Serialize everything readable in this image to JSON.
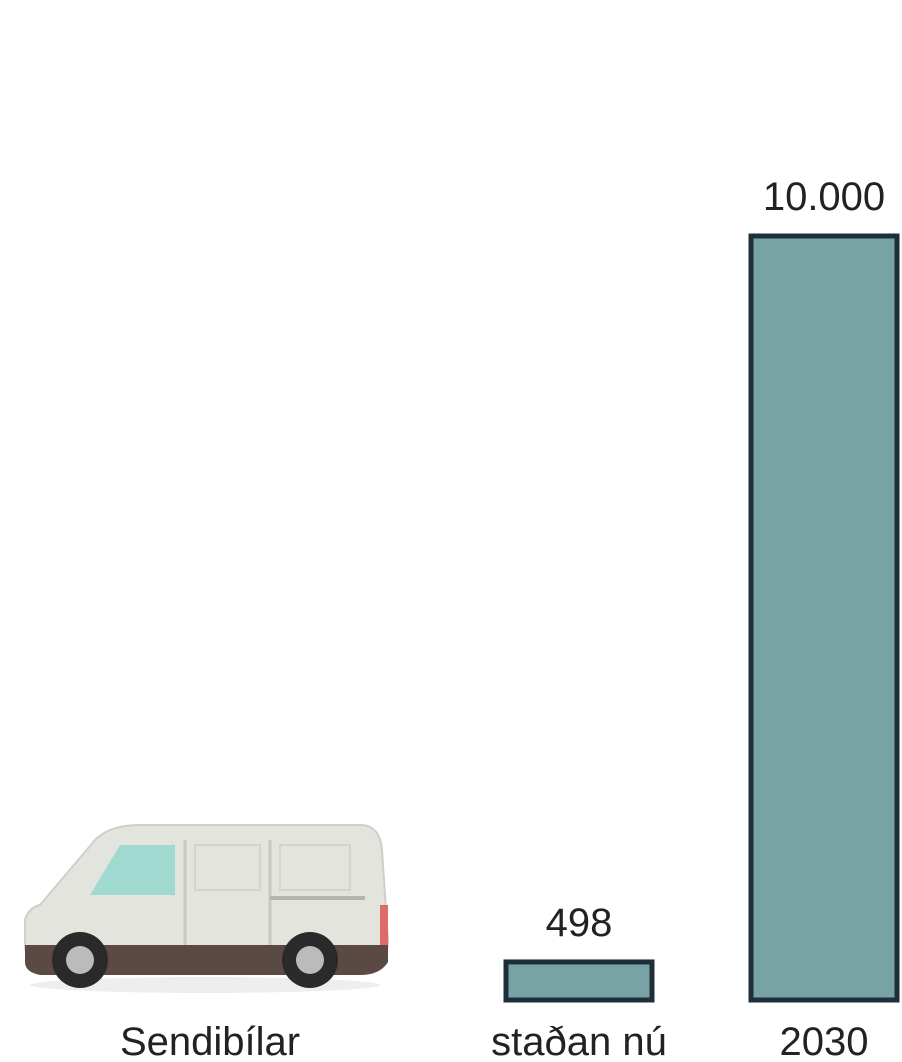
{
  "chart_data": {
    "type": "bar",
    "subject": "Sendibílar",
    "categories": [
      "staðan nú",
      "2030"
    ],
    "values": [
      498,
      10000
    ],
    "value_labels": [
      "498",
      "10.000"
    ],
    "color": "#78a3a5",
    "edge_color": "#1e2f3a"
  }
}
